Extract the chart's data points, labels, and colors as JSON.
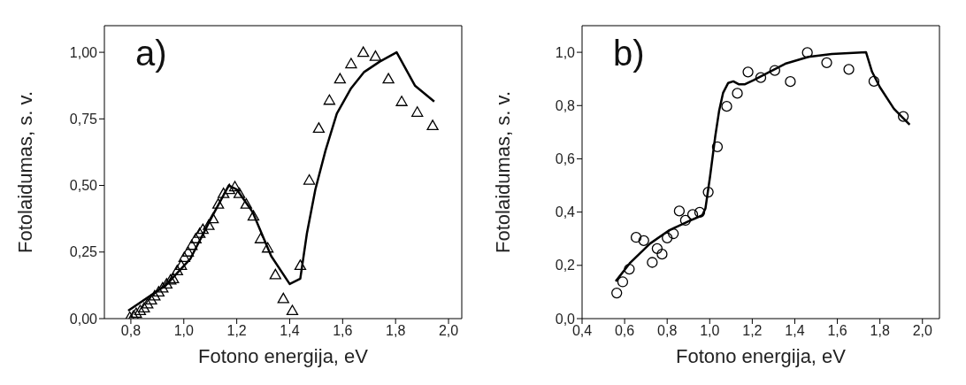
{
  "chart_data": [
    {
      "type": "scatter",
      "annotations": [
        "a)"
      ],
      "xlabel": "Fotono energija, eV",
      "ylabel": "Fotolaidumas, s. v.",
      "xlim": [
        0.7,
        2.05
      ],
      "ylim": [
        0,
        1.1
      ],
      "xticks": [
        {
          "value": 0.8,
          "label": "0,8"
        },
        {
          "value": 1.0,
          "label": "1,0"
        },
        {
          "value": 1.2,
          "label": "1,2"
        },
        {
          "value": 1.4,
          "label": "1,4"
        },
        {
          "value": 1.6,
          "label": "1,6"
        },
        {
          "value": 1.8,
          "label": "1,8"
        },
        {
          "value": 2.0,
          "label": "2,0"
        }
      ],
      "yticks": [
        {
          "value": 0,
          "label": "0,00"
        },
        {
          "value": 0.25,
          "label": "0,25"
        },
        {
          "value": 0.5,
          "label": "0,50"
        },
        {
          "value": 0.75,
          "label": "0,75"
        },
        {
          "value": 1.0,
          "label": "1,00"
        }
      ],
      "series": [
        {
          "marker": "triangle",
          "color": "#000000",
          "x": [
            0.796,
            0.81,
            0.82,
            0.835,
            0.85,
            0.863,
            0.877,
            0.89,
            0.905,
            0.92,
            0.935,
            0.95,
            0.96,
            0.975,
            0.99,
            1.002,
            1.016,
            1.03,
            1.045,
            1.06,
            1.072,
            1.094,
            1.11,
            1.13,
            1.15,
            1.172,
            1.193,
            1.21,
            1.236,
            1.263,
            1.29,
            1.317,
            1.346,
            1.376,
            1.41,
            1.44,
            1.474,
            1.51,
            1.55,
            1.59,
            1.632,
            1.678,
            1.724,
            1.773,
            1.823,
            1.882,
            1.94
          ],
          "values": [
            0.005,
            0.01,
            0.02,
            0.03,
            0.04,
            0.055,
            0.07,
            0.085,
            0.1,
            0.115,
            0.13,
            0.145,
            0.15,
            0.18,
            0.2,
            0.23,
            0.25,
            0.275,
            0.3,
            0.32,
            0.335,
            0.35,
            0.375,
            0.43,
            0.47,
            0.485,
            0.495,
            0.47,
            0.43,
            0.385,
            0.3,
            0.265,
            0.165,
            0.075,
            0.03,
            0.2,
            0.52,
            0.715,
            0.82,
            0.9,
            0.957,
            1.0,
            0.985,
            0.9,
            0.815,
            0.775,
            0.725
          ]
        },
        {
          "type": "line",
          "color": "#000000",
          "x": [
            0.79,
            0.932,
            1.025,
            1.105,
            1.17,
            1.2,
            1.26,
            1.33,
            1.4,
            1.44,
            1.465,
            1.497,
            1.535,
            1.578,
            1.632,
            1.68,
            1.74,
            1.804,
            1.873,
            1.946
          ],
          "values": [
            0.03,
            0.125,
            0.225,
            0.38,
            0.5,
            0.485,
            0.4,
            0.235,
            0.13,
            0.15,
            0.32,
            0.485,
            0.63,
            0.77,
            0.865,
            0.925,
            0.965,
            1.0,
            0.875,
            0.815
          ]
        }
      ]
    },
    {
      "type": "scatter",
      "annotations": [
        "b)"
      ],
      "xlabel": "Fotono energija, eV",
      "ylabel": "Fotolaidumas, s. v.",
      "xlim": [
        0.4,
        2.08
      ],
      "ylim": [
        0,
        1.1
      ],
      "xticks": [
        {
          "value": 0.4,
          "label": "0,4"
        },
        {
          "value": 0.6,
          "label": "0,6"
        },
        {
          "value": 0.8,
          "label": "0,8"
        },
        {
          "value": 1.0,
          "label": "1,0"
        },
        {
          "value": 1.2,
          "label": "1,2"
        },
        {
          "value": 1.4,
          "label": "1,4"
        },
        {
          "value": 1.6,
          "label": "1,6"
        },
        {
          "value": 1.8,
          "label": "1,8"
        },
        {
          "value": 2.0,
          "label": "2,0"
        }
      ],
      "yticks": [
        {
          "value": 0,
          "label": "0,0"
        },
        {
          "value": 0.2,
          "label": "0,2"
        },
        {
          "value": 0.4,
          "label": "0,4"
        },
        {
          "value": 0.6,
          "label": "0,6"
        },
        {
          "value": 0.8,
          "label": "0,8"
        },
        {
          "value": 1.0,
          "label": "1,0"
        }
      ],
      "series": [
        {
          "marker": "circle",
          "color": "#000000",
          "x": [
            0.563,
            0.591,
            0.622,
            0.654,
            0.69,
            0.73,
            0.753,
            0.776,
            0.8,
            0.829,
            0.857,
            0.886,
            0.92,
            0.953,
            0.993,
            1.036,
            1.08,
            1.13,
            1.18,
            1.24,
            1.306,
            1.379,
            1.459,
            1.55,
            1.654,
            1.772,
            1.91
          ],
          "values": [
            0.096,
            0.138,
            0.186,
            0.305,
            0.293,
            0.211,
            0.263,
            0.242,
            0.303,
            0.319,
            0.404,
            0.369,
            0.391,
            0.399,
            0.475,
            0.645,
            0.797,
            0.846,
            0.926,
            0.905,
            0.932,
            0.89,
            0.999,
            0.961,
            0.936,
            0.891,
            0.759
          ]
        },
        {
          "type": "line",
          "color": "#000000",
          "x": [
            0.558,
            0.624,
            0.72,
            0.806,
            0.904,
            0.965,
            0.98,
            1.002,
            1.026,
            1.044,
            1.063,
            1.087,
            1.111,
            1.136,
            1.166,
            1.208,
            1.27,
            1.355,
            1.464,
            1.574,
            1.735,
            1.763,
            1.8,
            1.866,
            1.94
          ],
          "values": [
            0.14,
            0.208,
            0.282,
            0.33,
            0.367,
            0.388,
            0.414,
            0.536,
            0.684,
            0.779,
            0.848,
            0.885,
            0.891,
            0.88,
            0.88,
            0.896,
            0.922,
            0.957,
            0.983,
            0.994,
            1.0,
            0.927,
            0.869,
            0.788,
            0.728
          ]
        }
      ]
    }
  ]
}
